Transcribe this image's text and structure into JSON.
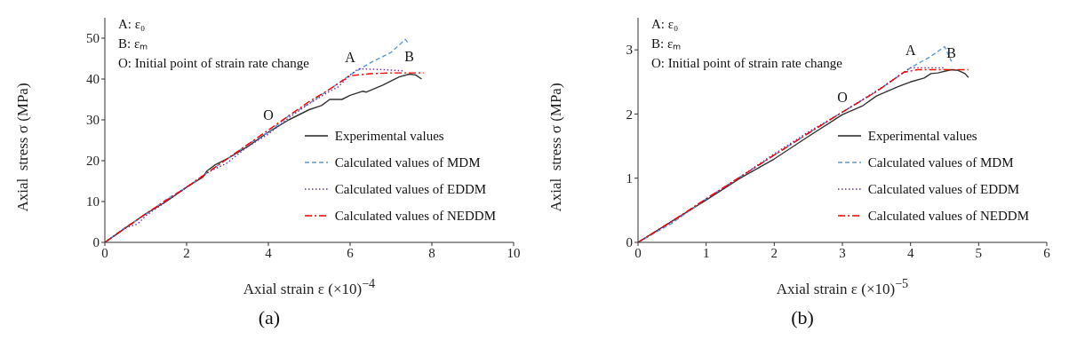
{
  "chart_data": [
    {
      "type": "line",
      "title": "(a)",
      "xlabel": "Axial strain ε (×10)$^{−4}$",
      "ylabel": "Axial  stress σ (MPa)",
      "xlim": [
        0,
        10
      ],
      "xticks": [
        0,
        2,
        4,
        6,
        8,
        10
      ],
      "ylim": [
        0,
        55
      ],
      "yticks": [
        0,
        10,
        20,
        30,
        40,
        50
      ],
      "grid": false,
      "legend": "right",
      "annotations": [
        "A: ε₀",
        "B: εₘ",
        "O: Initial point of strain rate change",
        {
          "text": "A",
          "x": 6,
          "y": 41
        },
        {
          "text": "B",
          "x": 7.45,
          "y": 41.2
        },
        {
          "text": "O",
          "x": 4,
          "y": 27
        }
      ],
      "series": [
        {
          "name": "Experimental values",
          "color": "#333333",
          "line_style": "solid",
          "x": [
            0,
            0.5,
            1,
            1.5,
            2,
            2.4,
            2.5,
            2.7,
            3,
            3.5,
            4,
            4.5,
            5,
            5.3,
            5.5,
            5.8,
            6,
            6.3,
            6.4,
            6.8,
            7.2,
            7.45,
            7.6,
            7.75
          ],
          "values": [
            0,
            3.5,
            7,
            10,
            13.5,
            16,
            17.5,
            19,
            20.5,
            23.5,
            27,
            30,
            32.5,
            33.5,
            35,
            35,
            36,
            37,
            36.8,
            38.5,
            40.5,
            41.2,
            41,
            40
          ]
        },
        {
          "name": "Calculated values of MDM",
          "color": "#5b9bd5",
          "line_style": "dashed",
          "x": [
            0,
            0.5,
            1,
            1.5,
            2,
            2.5,
            3,
            3.5,
            4,
            4.5,
            5,
            5.5,
            6,
            6.5,
            7,
            7.35,
            7.45
          ],
          "values": [
            0,
            3.7,
            6.8,
            10.5,
            13.5,
            17,
            20.5,
            24,
            27,
            31,
            34,
            37.5,
            41,
            44,
            46.5,
            49.7,
            48.5
          ]
        },
        {
          "name": "Calculated values of EDDM",
          "color": "#7030a0",
          "line_style": "dotted",
          "x": [
            0,
            0.5,
            0.8,
            1,
            1.5,
            2,
            2.5,
            3,
            3.5,
            4,
            4.5,
            5,
            5.5,
            5.7,
            6,
            6.2,
            6.8,
            7.3
          ],
          "values": [
            0,
            3.5,
            4.5,
            6.5,
            10,
            13.5,
            17,
            19.5,
            23.5,
            26.5,
            30.5,
            34,
            37,
            38,
            41,
            42.5,
            42.3,
            42
          ]
        },
        {
          "name": "Calculated values of NEDDM",
          "color": "#ff0000",
          "line_style": "dashdot",
          "x": [
            0,
            0.5,
            1,
            1.5,
            2,
            2.5,
            3,
            3.5,
            4,
            4.5,
            5,
            5.5,
            6,
            6.5,
            7,
            7.8
          ],
          "values": [
            0,
            3.5,
            7,
            10.3,
            13.5,
            17,
            20.5,
            24,
            27.5,
            31,
            34.5,
            37.5,
            40.8,
            41.3,
            41.5,
            41.5
          ]
        }
      ]
    },
    {
      "type": "line",
      "title": "(b)",
      "xlabel": "Axial strain ε (×10)$^{−5}$",
      "ylabel": "Axial  stress σ (MPa)",
      "xlim": [
        0,
        6
      ],
      "xticks": [
        0,
        1,
        2,
        3,
        4,
        5,
        6
      ],
      "ylim": [
        0,
        3.5
      ],
      "yticks": [
        0,
        1,
        2,
        3
      ],
      "grid": false,
      "legend": "right",
      "annotations": [
        "A: ε₀",
        "B: εₘ",
        "O: Initial point of strain rate change",
        {
          "text": "A",
          "x": 4,
          "y": 2.72
        },
        {
          "text": "B",
          "x": 4.6,
          "y": 2.69
        },
        {
          "text": "O",
          "x": 3,
          "y": 1.99
        }
      ],
      "series": [
        {
          "name": "Experimental values",
          "color": "#333333",
          "line_style": "solid",
          "x": [
            0,
            0.5,
            1,
            1.5,
            2,
            2.5,
            3,
            3.3,
            3.5,
            3.8,
            4,
            4.2,
            4.3,
            4.4,
            4.6,
            4.7,
            4.8,
            4.85
          ],
          "values": [
            0,
            0.33,
            0.66,
            1.0,
            1.3,
            1.65,
            1.99,
            2.13,
            2.28,
            2.42,
            2.5,
            2.56,
            2.63,
            2.64,
            2.69,
            2.68,
            2.63,
            2.57
          ]
        },
        {
          "name": "Calculated values of MDM",
          "color": "#5b9bd5",
          "line_style": "dashed",
          "x": [
            0,
            0.5,
            1,
            1.5,
            2,
            2.5,
            3,
            3.5,
            4,
            4.3,
            4.5,
            4.6
          ],
          "values": [
            0,
            0.3,
            0.68,
            1.02,
            1.36,
            1.7,
            2.03,
            2.35,
            2.72,
            2.9,
            3.05,
            2.82
          ]
        },
        {
          "name": "Calculated values of EDDM",
          "color": "#7030a0",
          "line_style": "dotted",
          "x": [
            0,
            0.5,
            1,
            1.5,
            2,
            2.5,
            3,
            3.5,
            4,
            4.5
          ],
          "values": [
            0,
            0.32,
            0.67,
            1.02,
            1.38,
            1.72,
            2.03,
            2.36,
            2.72,
            2.72
          ]
        },
        {
          "name": "Calculated values of NEDDM",
          "color": "#ff0000",
          "line_style": "dashdot",
          "x": [
            0,
            0.5,
            1,
            1.5,
            2,
            2.5,
            3,
            3.5,
            3.9,
            4.1,
            4.85
          ],
          "values": [
            0,
            0.33,
            0.68,
            1.02,
            1.36,
            1.7,
            2.03,
            2.35,
            2.65,
            2.69,
            2.69
          ]
        }
      ]
    }
  ]
}
